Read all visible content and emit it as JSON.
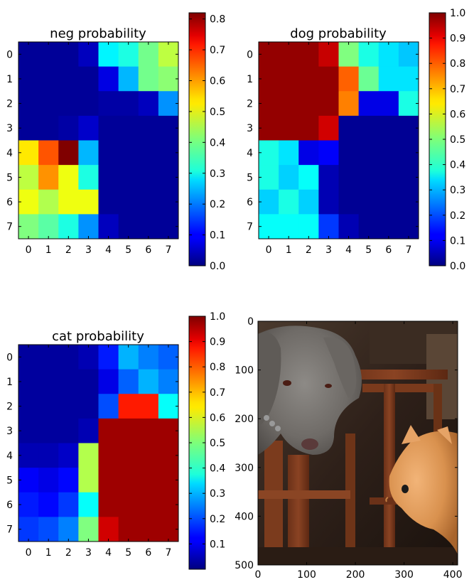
{
  "chart_data": [
    {
      "type": "heatmap",
      "title": "neg probability",
      "x_ticks": [
        "0",
        "1",
        "2",
        "3",
        "4",
        "5",
        "6",
        "7"
      ],
      "y_ticks": [
        "0",
        "1",
        "2",
        "3",
        "4",
        "5",
        "6",
        "7"
      ],
      "colormap": "jet",
      "clim": [
        0,
        0.82
      ],
      "colorbar_ticks": [
        "0.0",
        "0.1",
        "0.2",
        "0.3",
        "0.4",
        "0.5",
        "0.6",
        "0.7",
        "0.8"
      ],
      "values": [
        [
          0.02,
          0.02,
          0.02,
          0.05,
          0.3,
          0.33,
          0.4,
          0.46
        ],
        [
          0.02,
          0.02,
          0.02,
          0.02,
          0.08,
          0.25,
          0.4,
          0.42
        ],
        [
          0.02,
          0.02,
          0.02,
          0.02,
          0.03,
          0.03,
          0.05,
          0.22
        ],
        [
          0.02,
          0.02,
          0.03,
          0.06,
          0.02,
          0.02,
          0.02,
          0.02
        ],
        [
          0.53,
          0.65,
          0.82,
          0.25,
          0.02,
          0.02,
          0.02,
          0.02
        ],
        [
          0.46,
          0.6,
          0.5,
          0.33,
          0.02,
          0.02,
          0.02,
          0.02
        ],
        [
          0.5,
          0.45,
          0.5,
          0.5,
          0.02,
          0.02,
          0.02,
          0.02
        ],
        [
          0.41,
          0.38,
          0.33,
          0.22,
          0.05,
          0.02,
          0.02,
          0.02
        ]
      ]
    },
    {
      "type": "heatmap",
      "title": "dog probability",
      "x_ticks": [
        "0",
        "1",
        "2",
        "3",
        "4",
        "5",
        "6",
        "7"
      ],
      "y_ticks": [
        "0",
        "1",
        "2",
        "3",
        "4",
        "5",
        "6",
        "7"
      ],
      "colormap": "jet",
      "clim": [
        0,
        1.0
      ],
      "colorbar_ticks": [
        "0.0",
        "0.1",
        "0.2",
        "0.3",
        "0.4",
        "0.5",
        "0.6",
        "0.7",
        "0.8",
        "0.9",
        "1.0"
      ],
      "values": [
        [
          0.98,
          0.98,
          0.98,
          0.93,
          0.5,
          0.4,
          0.35,
          0.32
        ],
        [
          0.98,
          0.98,
          0.98,
          0.98,
          0.78,
          0.48,
          0.35,
          0.35
        ],
        [
          0.98,
          0.98,
          0.98,
          0.98,
          0.75,
          0.1,
          0.1,
          0.4
        ],
        [
          0.98,
          0.98,
          0.98,
          0.92,
          0.02,
          0.02,
          0.02,
          0.02
        ],
        [
          0.4,
          0.35,
          0.1,
          0.12,
          0.02,
          0.02,
          0.02,
          0.02
        ],
        [
          0.4,
          0.33,
          0.38,
          0.05,
          0.02,
          0.02,
          0.02,
          0.02
        ],
        [
          0.33,
          0.4,
          0.33,
          0.05,
          0.02,
          0.02,
          0.02,
          0.02
        ],
        [
          0.38,
          0.38,
          0.38,
          0.18,
          0.05,
          0.02,
          0.02,
          0.02
        ]
      ]
    },
    {
      "type": "heatmap",
      "title": "cat probability",
      "x_ticks": [
        "0",
        "1",
        "2",
        "3",
        "4",
        "5",
        "6",
        "7"
      ],
      "y_ticks": [
        "0",
        "1",
        "2",
        "3",
        "4",
        "5",
        "6",
        "7"
      ],
      "colormap": "jet",
      "clim": [
        0,
        1.0
      ],
      "colorbar_ticks": [
        "0.1",
        "0.2",
        "0.3",
        "0.4",
        "0.5",
        "0.6",
        "0.7",
        "0.8",
        "0.9",
        "1.0"
      ],
      "values": [
        [
          0.03,
          0.03,
          0.03,
          0.05,
          0.15,
          0.3,
          0.25,
          0.22
        ],
        [
          0.03,
          0.03,
          0.03,
          0.03,
          0.1,
          0.22,
          0.3,
          0.25
        ],
        [
          0.03,
          0.03,
          0.03,
          0.03,
          0.2,
          0.85,
          0.85,
          0.38
        ],
        [
          0.03,
          0.03,
          0.03,
          0.05,
          0.97,
          0.97,
          0.97,
          0.97
        ],
        [
          0.05,
          0.05,
          0.07,
          0.55,
          0.97,
          0.97,
          0.97,
          0.97
        ],
        [
          0.12,
          0.1,
          0.13,
          0.55,
          0.97,
          0.97,
          0.97,
          0.97
        ],
        [
          0.15,
          0.13,
          0.18,
          0.38,
          0.97,
          0.97,
          0.97,
          0.97
        ],
        [
          0.18,
          0.2,
          0.25,
          0.5,
          0.92,
          0.97,
          0.97,
          0.97
        ]
      ]
    },
    {
      "type": "image",
      "x_ticks": [
        "0",
        "100",
        "200",
        "300",
        "400"
      ],
      "y_ticks": [
        "0",
        "100",
        "200",
        "300",
        "400",
        "500"
      ],
      "xlim": [
        0,
        410
      ],
      "ylim": [
        0,
        500
      ]
    }
  ]
}
